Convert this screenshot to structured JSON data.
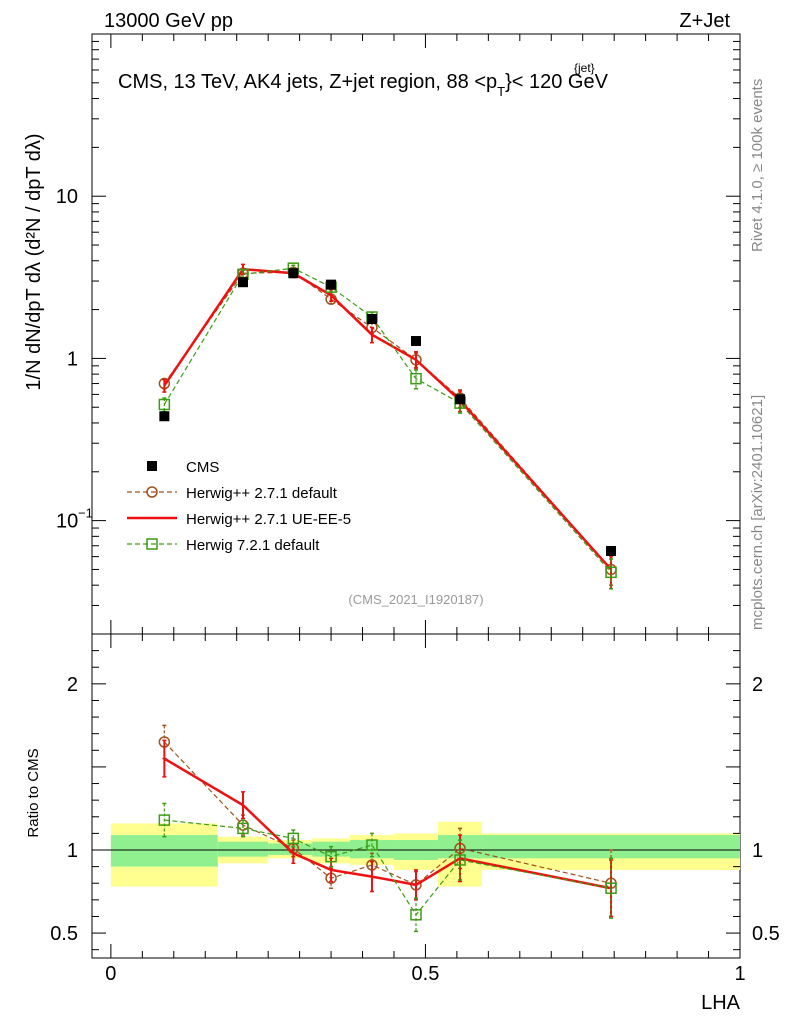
{
  "header": {
    "left": "13000 GeV pp",
    "right": "Z+Jet"
  },
  "side_labels": {
    "rivet": "Rivet 4.1.0, ≥ 100k events",
    "mcplots": "mcplots.cern.ch [arXiv:2401.10621]"
  },
  "main_panel": {
    "title_main": "CMS, 13 TeV, AK4 jets, Z+jet region, 88 <p",
    "title_sup": "{jet}",
    "title_sub": "T",
    "title_end": "}< 120 GeV",
    "analysis_tag": "(CMS_2021_I1920187)",
    "y_axis_label": "1/N dN/dpT dλ (d²N / dpT dλ)"
  },
  "ratio_panel": {
    "y_label": "Ratio to CMS"
  },
  "x_axis_label": "LHA",
  "legend": [
    {
      "key": "cms",
      "label": "CMS"
    },
    {
      "key": "h271",
      "label": "Herwig++ 2.7.1 default"
    },
    {
      "key": "h271ue",
      "label": "Herwig++ 2.7.1 UE-EE-5"
    },
    {
      "key": "h721",
      "label": "Herwig 7.2.1 default"
    }
  ],
  "colors": {
    "cms": "#000000",
    "h271": "#a0521e",
    "h271ue": "#ee1111",
    "h721": "#3c9c14",
    "band_inner": "#90f090",
    "band_outer": "#ffff90"
  },
  "chart_data": [
    {
      "type": "scatter",
      "title": "CMS, 13 TeV, AK4 jets, Z+jet region, 88 < pT{jet} < 120 GeV",
      "xlabel": "LHA",
      "ylabel": "1/N dN/dpT dλ",
      "yscale": "log",
      "xlim": [
        -0.03,
        1.0
      ],
      "ylim": [
        0.02,
        100
      ],
      "yticks": [
        {
          "v": 0.1,
          "label": "10",
          "exp": "−1"
        },
        {
          "v": 1,
          "label": "1"
        },
        {
          "v": 10,
          "label": "10"
        }
      ],
      "x": [
        0.085,
        0.21,
        0.29,
        0.35,
        0.415,
        0.485,
        0.555,
        0.795
      ],
      "series": [
        {
          "name": "CMS",
          "key": "cms",
          "values": [
            0.44,
            2.95,
            3.35,
            2.85,
            1.75,
            1.28,
            0.56,
            0.065
          ],
          "errors": [
            0,
            0,
            0,
            0,
            0,
            0,
            0,
            0
          ]
        },
        {
          "name": "Herwig++ 2.7.1 default",
          "key": "h271",
          "values": [
            0.7,
            3.35,
            3.4,
            2.32,
            1.55,
            0.98,
            0.57,
            0.05
          ],
          "errors": [
            0.05,
            0.2,
            0.15,
            0.15,
            0.12,
            0.1,
            0.07,
            0.01
          ]
        },
        {
          "name": "Herwig++ 2.7.1 UE-EE-5",
          "key": "h271ue",
          "values": [
            0.68,
            3.55,
            3.35,
            2.45,
            1.4,
            0.98,
            0.55,
            0.05
          ],
          "errors": [
            0.06,
            0.25,
            0.2,
            0.2,
            0.15,
            0.12,
            0.08,
            0.012
          ]
        },
        {
          "name": "Herwig 7.2.1 default",
          "key": "h721",
          "values": [
            0.52,
            3.3,
            3.6,
            2.75,
            1.8,
            0.75,
            0.53,
            0.048
          ],
          "errors": [
            0.05,
            0.2,
            0.15,
            0.18,
            0.12,
            0.1,
            0.07,
            0.01
          ]
        }
      ]
    },
    {
      "type": "line",
      "title": "Ratio to CMS",
      "xlabel": "LHA",
      "ylabel": "Ratio to CMS",
      "xlim": [
        -0.03,
        1.0
      ],
      "ylim": [
        0.35,
        2.3
      ],
      "xticks": [
        {
          "v": 0,
          "label": "0"
        },
        {
          "v": 0.5,
          "label": "0.5"
        },
        {
          "v": 1,
          "label": "1"
        }
      ],
      "yticks": [
        {
          "v": 0.5,
          "label": "0.5"
        },
        {
          "v": 1,
          "label": "1"
        },
        {
          "v": 2,
          "label": "2"
        }
      ],
      "reference": 1,
      "uncertainty_bins": [
        {
          "x0": 0.0,
          "x1": 0.17,
          "inner": [
            0.9,
            1.09
          ],
          "outer": [
            0.78,
            1.16
          ]
        },
        {
          "x0": 0.17,
          "x1": 0.25,
          "inner": [
            0.96,
            1.05
          ],
          "outer": [
            0.92,
            1.08
          ]
        },
        {
          "x0": 0.25,
          "x1": 0.32,
          "inner": [
            0.97,
            1.04
          ],
          "outer": [
            0.95,
            1.06
          ]
        },
        {
          "x0": 0.32,
          "x1": 0.38,
          "inner": [
            0.96,
            1.05
          ],
          "outer": [
            0.92,
            1.07
          ]
        },
        {
          "x0": 0.38,
          "x1": 0.45,
          "inner": [
            0.95,
            1.06
          ],
          "outer": [
            0.91,
            1.09
          ]
        },
        {
          "x0": 0.45,
          "x1": 0.52,
          "inner": [
            0.94,
            1.06
          ],
          "outer": [
            0.88,
            1.1
          ]
        },
        {
          "x0": 0.52,
          "x1": 0.59,
          "inner": [
            0.95,
            1.09
          ],
          "outer": [
            0.78,
            1.17
          ]
        },
        {
          "x0": 0.59,
          "x1": 1.0,
          "inner": [
            0.95,
            1.09
          ],
          "outer": [
            0.88,
            1.1
          ]
        }
      ],
      "x": [
        0.085,
        0.21,
        0.29,
        0.35,
        0.415,
        0.485,
        0.555,
        0.795
      ],
      "series": [
        {
          "name": "Herwig++ 2.7.1 default",
          "key": "h271",
          "values": [
            1.65,
            1.15,
            1.01,
            0.83,
            0.91,
            0.79,
            1.01,
            0.8
          ],
          "errors": [
            0.1,
            0.06,
            0.05,
            0.06,
            0.07,
            0.08,
            0.12,
            0.2
          ]
        },
        {
          "name": "Herwig++ 2.7.1 UE-EE-5",
          "key": "h271ue",
          "values": [
            1.55,
            1.27,
            0.98,
            0.88,
            0.84,
            0.79,
            0.95,
            0.77
          ],
          "errors": [
            0.11,
            0.08,
            0.06,
            0.07,
            0.09,
            0.09,
            0.14,
            0.17
          ]
        },
        {
          "name": "Herwig 7.2.1 default",
          "key": "h721",
          "values": [
            1.18,
            1.13,
            1.07,
            0.96,
            1.03,
            0.61,
            0.94,
            0.77
          ],
          "errors": [
            0.1,
            0.05,
            0.05,
            0.06,
            0.07,
            0.1,
            0.12,
            0.18
          ]
        }
      ]
    }
  ]
}
